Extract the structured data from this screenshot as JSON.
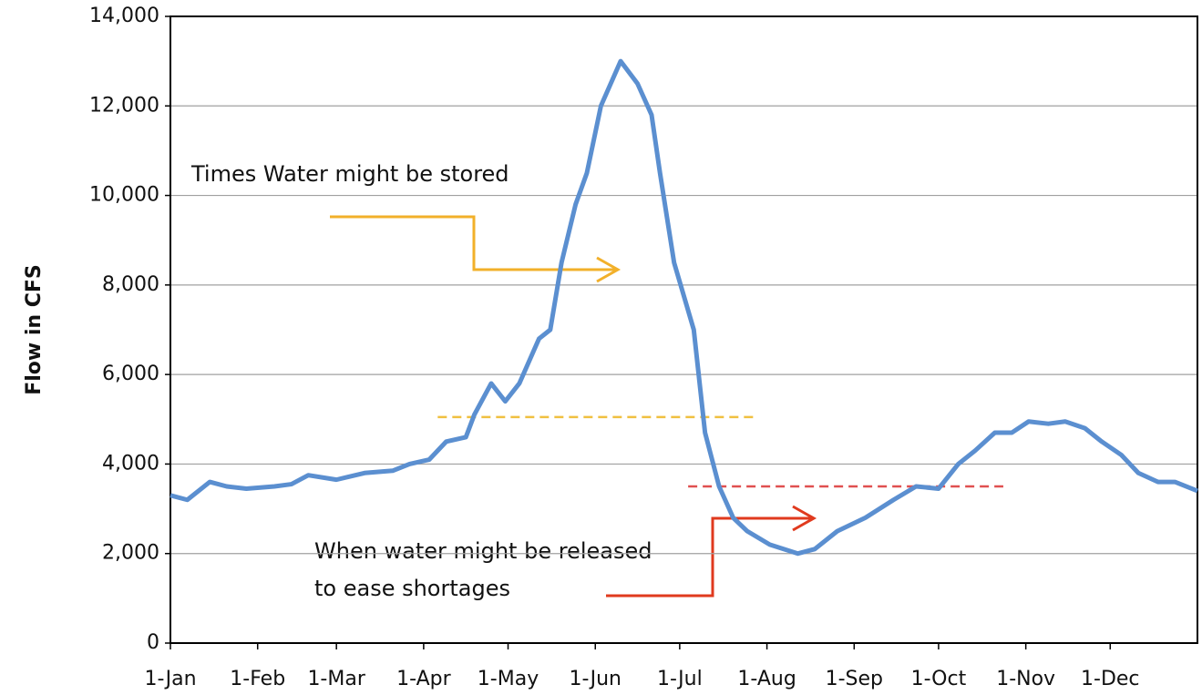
{
  "chart_data": {
    "type": "line",
    "y_label": "Flow in CFS",
    "x": [
      0,
      6,
      14,
      20,
      27,
      37,
      43,
      49,
      59,
      69,
      79,
      85,
      92,
      98,
      105,
      108,
      114,
      119,
      124,
      131,
      135,
      139,
      144,
      148,
      153,
      160,
      166,
      171,
      174,
      179,
      186,
      190,
      195,
      200,
      205,
      213,
      223,
      229,
      237,
      247,
      257,
      265,
      273,
      280,
      286,
      293,
      299,
      305,
      312,
      318,
      325,
      331,
      338,
      344,
      351,
      357,
      365
    ],
    "series": [
      {
        "name": "Flow",
        "color": "#5b8fd0",
        "values": [
          3300,
          3200,
          3600,
          3500,
          3450,
          3500,
          3550,
          3750,
          3650,
          3800,
          3850,
          4000,
          4100,
          4500,
          4600,
          5100,
          5800,
          5400,
          5800,
          6800,
          7000,
          8500,
          9800,
          10500,
          12000,
          13000,
          12500,
          11800,
          10500,
          8500,
          7000,
          4700,
          3500,
          2800,
          2500,
          2200,
          2000,
          2100,
          2500,
          2800,
          3200,
          3500,
          3450,
          4000,
          4300,
          4700,
          4700,
          4950,
          4900,
          4950,
          4800,
          4500,
          4200,
          3800,
          3600,
          3600,
          3400
        ]
      }
    ],
    "xlim": [
      0,
      365
    ],
    "xticks": [
      {
        "value": 0,
        "label": "1-Jan"
      },
      {
        "value": 31,
        "label": "1-Feb"
      },
      {
        "value": 59,
        "label": "1-Mar"
      },
      {
        "value": 90,
        "label": "1-Apr"
      },
      {
        "value": 120,
        "label": "1-May"
      },
      {
        "value": 151,
        "label": "1-Jun"
      },
      {
        "value": 181,
        "label": "1-Jul"
      },
      {
        "value": 212,
        "label": "1-Aug"
      },
      {
        "value": 243,
        "label": "1-Sep"
      },
      {
        "value": 273,
        "label": "1-Oct"
      },
      {
        "value": 304,
        "label": "1-Nov"
      },
      {
        "value": 334,
        "label": "1-Dec"
      }
    ],
    "ylim": [
      0,
      14000
    ],
    "yticks": [
      0,
      {
        "value": 2000,
        "label": "2,000"
      },
      {
        "value": 4000,
        "label": "4,000"
      },
      {
        "value": 6000,
        "label": "6,000"
      },
      {
        "value": 8000,
        "label": "8,000"
      },
      {
        "value": 10000,
        "label": "10,000"
      },
      {
        "value": 12000,
        "label": "12,000"
      },
      {
        "value": 14000,
        "label": "14,000"
      }
    ],
    "grid": true,
    "reference_lines": [
      {
        "value": 5050,
        "x": [
          95,
          208
        ],
        "color": "#f0c040"
      },
      {
        "value": 3500,
        "x": [
          184,
          296
        ],
        "color": "#e05050"
      }
    ],
    "annotations": [
      "Times Water might be stored",
      "When water might be released",
      "to ease shortages"
    ]
  }
}
